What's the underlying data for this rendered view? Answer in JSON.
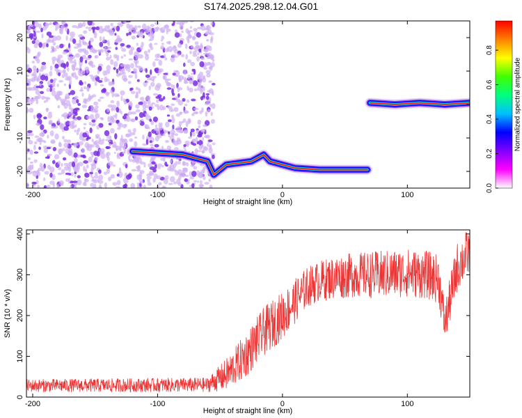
{
  "title": "S174.2025.298.12.04.G01",
  "colors": {
    "snr_line": "#ee3333",
    "scatter_light": "#cfb0f2",
    "scatter_dark": "#7a2fe0",
    "colorbar_stops": [
      "#ffffff",
      "#ff00ff",
      "#8000ff",
      "#0000ff",
      "#00c0ff",
      "#00ff80",
      "#40ff00",
      "#ffff00",
      "#ff8000",
      "#ff0000"
    ]
  },
  "chart_data": [
    {
      "type": "heatmap",
      "name": "spectrogram",
      "xlabel": "Height of straight line (km)",
      "ylabel": "Frequency (Hz)",
      "xlim": [
        -205,
        150
      ],
      "ylim": [
        -25,
        25
      ],
      "xticks": [
        "-200",
        "-100",
        "0",
        "100"
      ],
      "xtick_values": [
        -200,
        -100,
        0,
        100
      ],
      "yticks": [
        "-20",
        "-10",
        "0",
        "10",
        "20"
      ],
      "ytick_values": [
        -20,
        -10,
        0,
        10,
        20
      ],
      "noise_region_x": [
        -205,
        -55
      ],
      "ridge": [
        {
          "x": -120,
          "y": -14
        },
        {
          "x": -80,
          "y": -15
        },
        {
          "x": -60,
          "y": -17
        },
        {
          "x": -55,
          "y": -21
        },
        {
          "x": -45,
          "y": -18
        },
        {
          "x": -35,
          "y": -17.5
        },
        {
          "x": -25,
          "y": -17
        },
        {
          "x": -15,
          "y": -15
        },
        {
          "x": -10,
          "y": -17
        },
        {
          "x": 0,
          "y": -18
        },
        {
          "x": 10,
          "y": -19
        },
        {
          "x": 30,
          "y": -19.5
        },
        {
          "x": 50,
          "y": -19.5
        },
        {
          "x": 68,
          "y": -19.5
        },
        {
          "x": 70,
          "y": 0.5
        },
        {
          "x": 90,
          "y": 0
        },
        {
          "x": 110,
          "y": 0.5
        },
        {
          "x": 130,
          "y": 0
        },
        {
          "x": 150,
          "y": 0.5
        }
      ],
      "colorbar": {
        "label": "Normalized spectral amplitude",
        "range": [
          0,
          0.97
        ],
        "ticks": [
          "0.0",
          "0.2",
          "0.4",
          "0.6",
          "0.8"
        ],
        "tick_values": [
          0.0,
          0.2,
          0.4,
          0.6,
          0.8
        ]
      }
    },
    {
      "type": "line",
      "name": "snr",
      "xlabel": "Height of straight line (km)",
      "ylabel": "SNR (10 * v/v)",
      "xlim": [
        -205,
        150
      ],
      "ylim": [
        0,
        410
      ],
      "xticks": [
        "-200",
        "-100",
        "0",
        "100"
      ],
      "xtick_values": [
        -200,
        -100,
        0,
        100
      ],
      "yticks": [
        "0",
        "100",
        "200",
        "300",
        "400"
      ],
      "ytick_values": [
        0,
        100,
        200,
        300,
        400
      ],
      "envelope": {
        "x": [
          -205,
          -60,
          -45,
          -30,
          -15,
          0,
          10,
          20,
          30,
          45,
          60,
          80,
          100,
          115,
          125,
          130,
          135,
          140,
          150
        ],
        "mean": [
          28,
          30,
          55,
          100,
          160,
          200,
          235,
          270,
          285,
          295,
          300,
          300,
          305,
          300,
          290,
          180,
          250,
          320,
          360
        ],
        "spread": [
          16,
          18,
          40,
          55,
          60,
          60,
          55,
          50,
          50,
          55,
          55,
          60,
          60,
          60,
          60,
          50,
          60,
          60,
          60
        ]
      }
    }
  ]
}
